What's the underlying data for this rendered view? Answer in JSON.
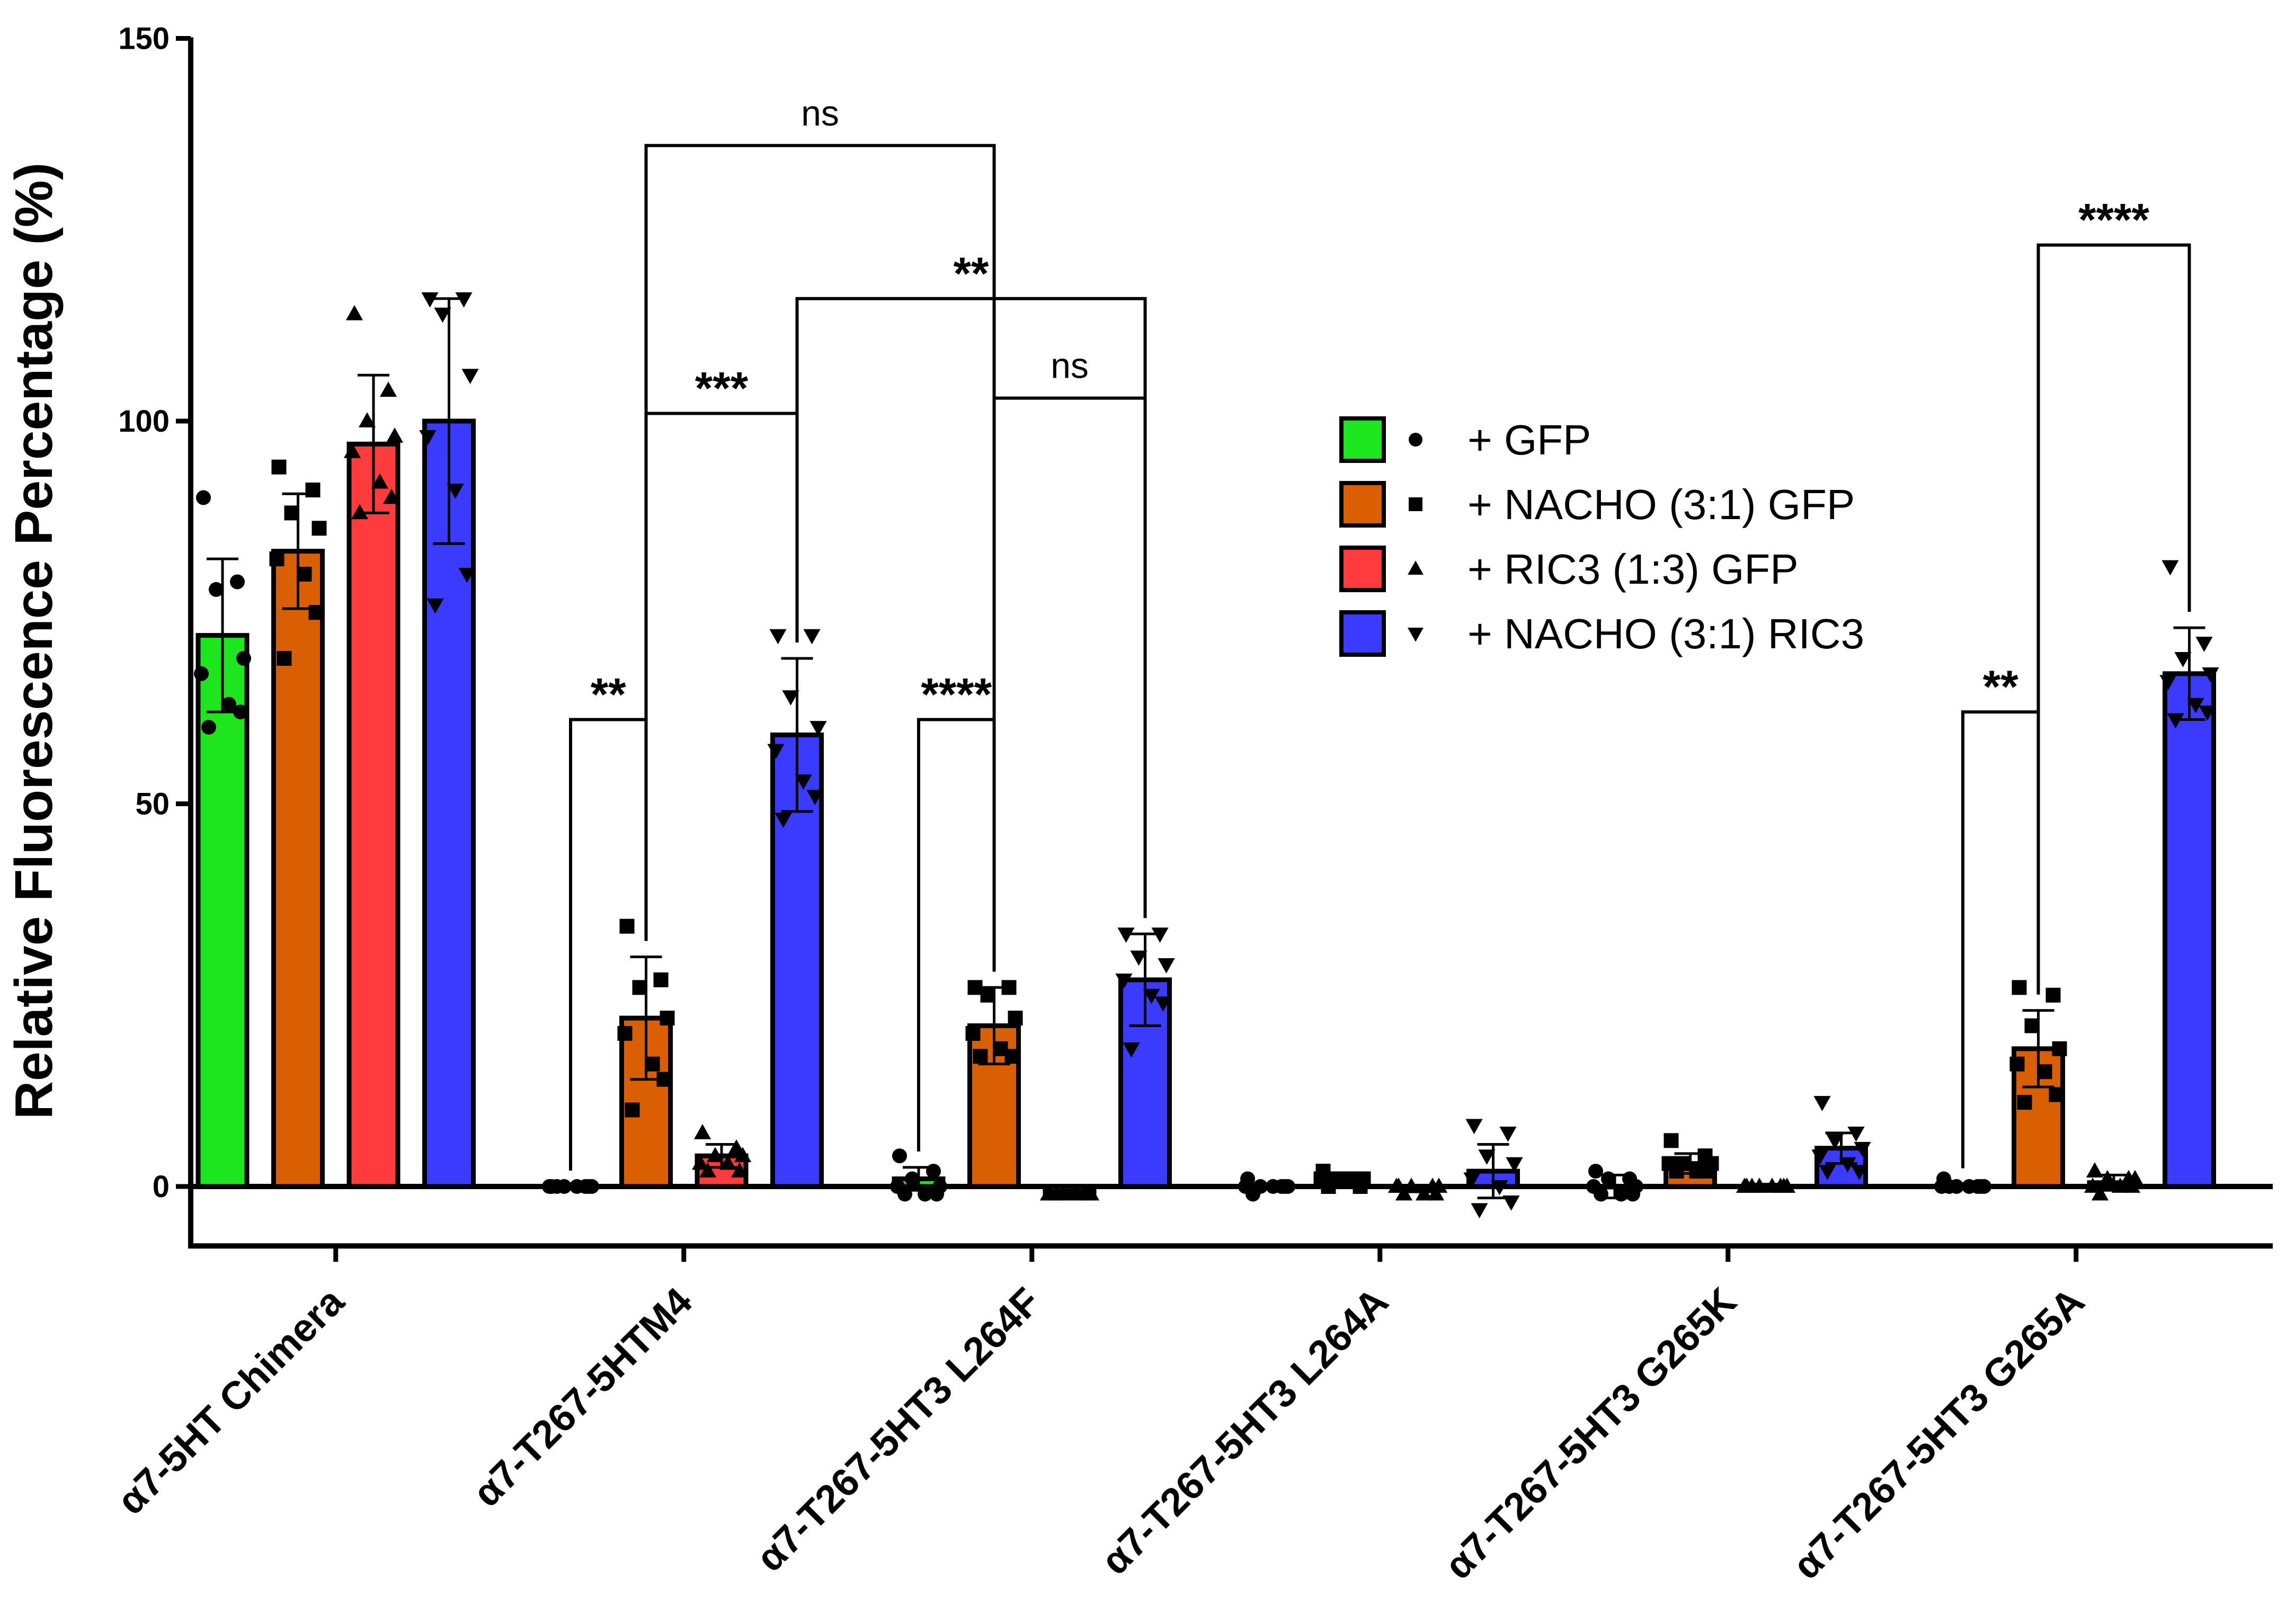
{
  "chart_data": {
    "type": "bar",
    "title": "",
    "xlabel": "",
    "ylabel": "Relative Fluorescence Percentage (%)",
    "ylim": [
      -5,
      150
    ],
    "yticks": [
      "0",
      "50",
      "100",
      "150"
    ],
    "categories": [
      "α7-5HT Chimera",
      "α7-T267-5HTM4",
      "α7-T267-5HT3 L264F",
      "α7-T267-5HT3 L264A",
      "α7-T267-5HT3 G265K",
      "α7-T267-5HT3 G265A"
    ],
    "series": [
      {
        "name": "+ GFP",
        "color": "#1ee61e",
        "marker": "circle",
        "values": [
          72,
          0,
          1,
          0,
          0,
          0
        ],
        "errors": [
          10,
          0,
          1.5,
          0.3,
          1.5,
          0.3
        ],
        "points": [
          [
            90,
            79,
            78,
            69,
            67,
            63,
            62,
            60
          ],
          [
            0,
            0,
            0,
            0,
            0,
            0,
            0,
            0
          ],
          [
            4,
            2,
            1,
            0,
            0,
            -1,
            -1,
            -1
          ],
          [
            1,
            0,
            0,
            0,
            0,
            0,
            0,
            -1
          ],
          [
            2,
            1,
            1,
            0,
            0,
            -1,
            -1,
            -1
          ],
          [
            1,
            0,
            0,
            0,
            0,
            0,
            0,
            0
          ]
        ]
      },
      {
        "name": "+ NACHO (3:1) GFP",
        "color": "#d95f02",
        "marker": "square",
        "values": [
          83,
          22,
          21,
          1,
          3,
          18
        ],
        "errors": [
          7.5,
          8,
          5,
          0.8,
          1.3,
          5
        ],
        "points": [
          [
            94,
            91,
            88,
            86,
            82,
            80,
            75,
            69
          ],
          [
            34,
            27,
            26,
            22,
            20,
            16,
            14,
            10
          ],
          [
            26,
            26,
            25,
            22,
            20,
            18,
            17,
            17
          ],
          [
            2,
            1,
            1,
            1,
            1,
            1,
            0,
            0
          ],
          [
            6,
            4,
            3,
            3,
            3,
            2,
            2,
            2
          ],
          [
            26,
            25,
            21,
            18,
            16,
            15,
            12,
            11
          ]
        ]
      },
      {
        "name": "+ RIC3 (1:3) GFP",
        "color": "#ff3b3b",
        "marker": "triangle",
        "values": [
          97,
          4,
          -1,
          -0.3,
          0,
          0.5
        ],
        "errors": [
          9,
          1.5,
          0.5,
          0.4,
          0.3,
          1
        ],
        "points": [
          [
            114,
            104,
            100,
            98,
            96,
            92,
            90,
            88
          ],
          [
            7,
            5,
            4,
            4,
            3,
            3,
            2,
            2
          ],
          [
            -1,
            -1,
            -1,
            -1,
            -1,
            -1,
            -1,
            -1
          ],
          [
            0,
            0,
            0,
            0,
            0,
            -1,
            -1,
            -1
          ],
          [
            0,
            0,
            0,
            0,
            0,
            0,
            0,
            0
          ],
          [
            2,
            1,
            1,
            1,
            0,
            0,
            0,
            -1
          ]
        ]
      },
      {
        "name": "+ NACHO (3:1) RIC3",
        "color": "#3b3bff",
        "marker": "triangle-down",
        "values": [
          100,
          59,
          27,
          2,
          5,
          67
        ],
        "errors": [
          16,
          10,
          6,
          3.5,
          2,
          6
        ],
        "points": [
          [
            116,
            116,
            114,
            106,
            98,
            91,
            80,
            76
          ],
          [
            72,
            72,
            64,
            60,
            57,
            53,
            51,
            48
          ],
          [
            33,
            33,
            30,
            29,
            27,
            25,
            24,
            18
          ],
          [
            8,
            7,
            4,
            3,
            1,
            0,
            -2,
            -3
          ],
          [
            11,
            7,
            6,
            5,
            4,
            3,
            2,
            2
          ],
          [
            81,
            71,
            69,
            67,
            66,
            63,
            62,
            61
          ]
        ]
      }
    ],
    "significance": [
      {
        "label": "**",
        "from": [
          1,
          0
        ],
        "to": [
          1,
          1
        ],
        "level": 61
      },
      {
        "label": "***",
        "from": [
          1,
          1
        ],
        "to": [
          1,
          3
        ],
        "level": 101
      },
      {
        "label": "ns",
        "from": [
          1,
          1
        ],
        "to": [
          2,
          1
        ],
        "level": 136
      },
      {
        "label": "**",
        "from": [
          1,
          3
        ],
        "to": [
          2,
          3
        ],
        "level": 116
      },
      {
        "label": "****",
        "from": [
          2,
          0
        ],
        "to": [
          2,
          1
        ],
        "level": 61
      },
      {
        "label": "ns",
        "from": [
          2,
          1
        ],
        "to": [
          2,
          3
        ],
        "level": 103
      },
      {
        "label": "**",
        "from": [
          5,
          0
        ],
        "to": [
          5,
          1
        ],
        "level": 62
      },
      {
        "label": "****",
        "from": [
          5,
          1
        ],
        "to": [
          5,
          3
        ],
        "level": 123
      }
    ],
    "legend_position": "right-center",
    "grid": false
  }
}
